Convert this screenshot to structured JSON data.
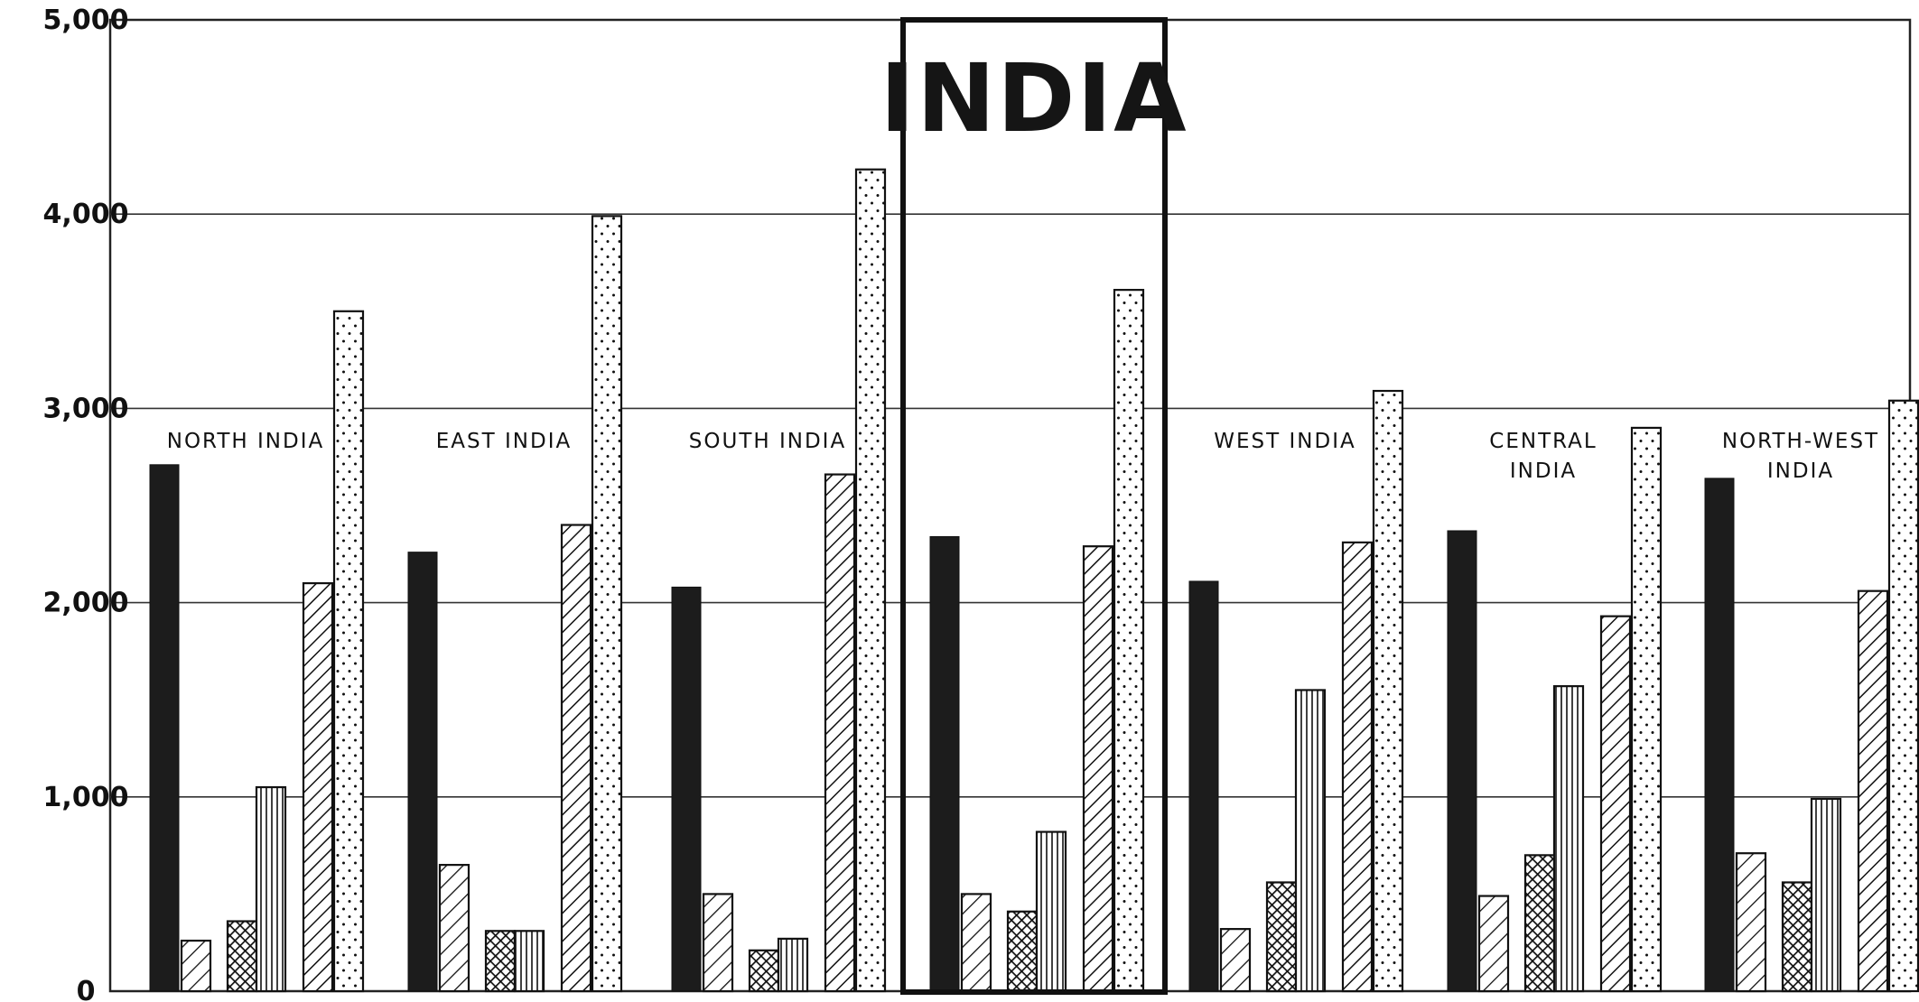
{
  "chart_data": {
    "type": "bar",
    "title": "INDIA",
    "ylim": [
      0,
      5000
    ],
    "yticks": [
      "0",
      "1,000",
      "2,000",
      "3,000",
      "4,000",
      "5,000"
    ],
    "grid": true,
    "groups": [
      {
        "label": [
          "NORTH INDIA"
        ],
        "values": [
          2710,
          260,
          360,
          1050,
          2100,
          3500
        ]
      },
      {
        "label": [
          "EAST INDIA"
        ],
        "values": [
          2260,
          650,
          310,
          310,
          2400,
          3990
        ]
      },
      {
        "label": [
          "SOUTH INDIA"
        ],
        "values": [
          2080,
          500,
          210,
          270,
          2660,
          4230
        ]
      },
      {
        "label": [],
        "values": [
          2340,
          500,
          410,
          820,
          2290,
          3610
        ],
        "highlighted": true
      },
      {
        "label": [
          "WEST INDIA"
        ],
        "values": [
          2110,
          320,
          560,
          1550,
          2310,
          3090
        ]
      },
      {
        "label": [
          "CENTRAL",
          "INDIA"
        ],
        "values": [
          2370,
          490,
          700,
          1570,
          1930,
          2900
        ]
      },
      {
        "label": [
          "NORTH-WEST",
          "INDIA"
        ],
        "values": [
          2640,
          710,
          560,
          990,
          2060,
          3040
        ]
      }
    ],
    "series_patterns": [
      "solid",
      "diagonal-fine",
      "crosshatch",
      "vertical-lines",
      "diagonal-coarse",
      "dotted"
    ]
  }
}
